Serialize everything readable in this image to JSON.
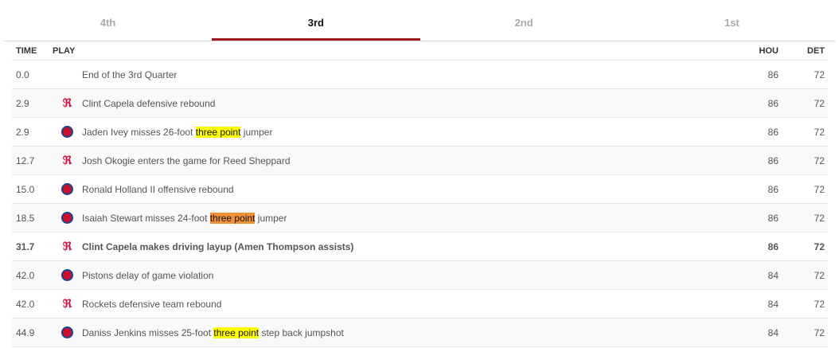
{
  "tabs": [
    {
      "label": "4th",
      "active": false
    },
    {
      "label": "3rd",
      "active": true
    },
    {
      "label": "2nd",
      "active": false
    },
    {
      "label": "1st",
      "active": false
    }
  ],
  "columns": {
    "time": "TIME",
    "play": "PLAY",
    "hou": "HOU",
    "det": "DET"
  },
  "colors": {
    "accent": "#9c1c1c",
    "highlight_yellow": "#ffff00",
    "highlight_orange": "#f0913a",
    "rockets": "#ce1141",
    "pistons_blue": "#1d428a"
  },
  "plays": [
    {
      "time": "0.0",
      "team": "",
      "pre": "End of the 3rd Quarter",
      "hl": "",
      "post": "",
      "hou": "86",
      "det": "72",
      "bold": false
    },
    {
      "time": "2.9",
      "team": "rockets",
      "pre": "Clint Capela defensive rebound",
      "hl": "",
      "post": "",
      "hou": "86",
      "det": "72",
      "bold": false
    },
    {
      "time": "2.9",
      "team": "pistons",
      "pre": "Jaden Ivey misses 26-foot ",
      "hl": "three point",
      "post": " jumper",
      "hou": "86",
      "det": "72",
      "bold": false,
      "hl_color": "yellow"
    },
    {
      "time": "12.7",
      "team": "rockets",
      "pre": "Josh Okogie enters the game for Reed Sheppard",
      "hl": "",
      "post": "",
      "hou": "86",
      "det": "72",
      "bold": false
    },
    {
      "time": "15.0",
      "team": "pistons",
      "pre": "Ronald Holland II offensive rebound",
      "hl": "",
      "post": "",
      "hou": "86",
      "det": "72",
      "bold": false
    },
    {
      "time": "18.5",
      "team": "pistons",
      "pre": "Isaiah Stewart misses 24-foot ",
      "hl": "three point",
      "post": " jumper",
      "hou": "86",
      "det": "72",
      "bold": false,
      "hl_color": "orange"
    },
    {
      "time": "31.7",
      "team": "rockets",
      "pre": "Clint Capela makes driving layup (Amen Thompson assists)",
      "hl": "",
      "post": "",
      "hou": "86",
      "det": "72",
      "bold": true
    },
    {
      "time": "42.0",
      "team": "pistons",
      "pre": "Pistons delay of game violation",
      "hl": "",
      "post": "",
      "hou": "84",
      "det": "72",
      "bold": false
    },
    {
      "time": "42.0",
      "team": "rockets",
      "pre": "Rockets defensive team rebound",
      "hl": "",
      "post": "",
      "hou": "84",
      "det": "72",
      "bold": false
    },
    {
      "time": "44.9",
      "team": "pistons",
      "pre": "Daniss Jenkins misses 25-foot ",
      "hl": "three point",
      "post": " step back jumpshot",
      "hou": "84",
      "det": "72",
      "bold": false,
      "hl_color": "yellow"
    }
  ]
}
